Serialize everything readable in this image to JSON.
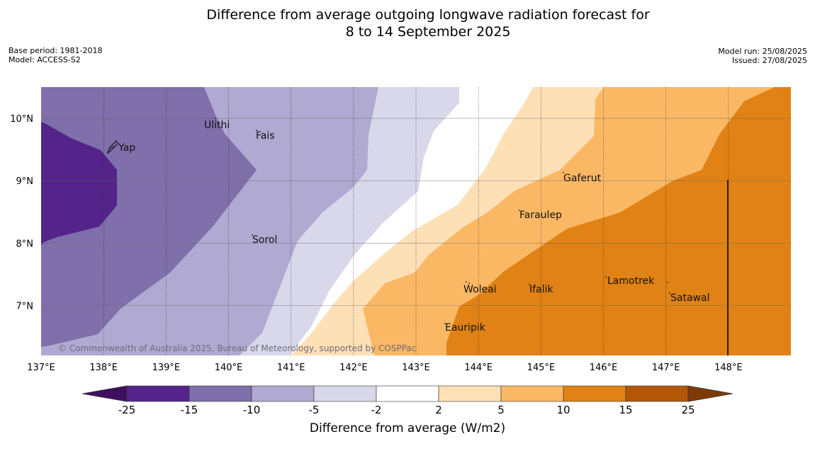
{
  "title_line1": "Difference from average outgoing longwave radiation forecast for",
  "title_line2": "8 to 14 September 2025",
  "meta_left": {
    "base_period": "Base period: 1981-2018",
    "model": "Model: ACCESS-S2"
  },
  "meta_right": {
    "model_run": "Model run: 25/08/2025",
    "issued": "Issued: 27/08/2025"
  },
  "copyright": "© Commonwealth of Australia 2025, Bureau of Meteorology, supported by COSPPac",
  "map": {
    "lon_range": [
      137,
      149
    ],
    "lat_range": [
      6.2,
      10.5
    ],
    "lon_ticks": [
      "137°E",
      "138°E",
      "139°E",
      "140°E",
      "141°E",
      "142°E",
      "143°E",
      "144°E",
      "145°E",
      "146°E",
      "147°E",
      "148°E"
    ],
    "lat_ticks": [
      "10°N",
      "9°N",
      "8°N",
      "7°N"
    ],
    "places": [
      {
        "name": "Yap",
        "lon": 138.1,
        "lat": 9.5
      },
      {
        "name": "Ulithi",
        "lon": 139.7,
        "lat": 10.0
      },
      {
        "name": "Fais",
        "lon": 140.4,
        "lat": 9.75
      },
      {
        "name": "Gaferut",
        "lon": 145.3,
        "lat": 9.05
      },
      {
        "name": "Faraulep",
        "lon": 144.6,
        "lat": 8.5
      },
      {
        "name": "Sorol",
        "lon": 140.4,
        "lat": 8.05
      },
      {
        "name": "Lamotrek",
        "lon": 146.1,
        "lat": 7.4
      },
      {
        "name": "Woleai",
        "lon": 143.8,
        "lat": 7.3
      },
      {
        "name": "Ifalik",
        "lon": 144.8,
        "lat": 7.3
      },
      {
        "name": "Satawal",
        "lon": 147.1,
        "lat": 7.15
      },
      {
        "name": "Eauripik",
        "lon": 143.2,
        "lat": 6.7
      }
    ]
  },
  "colorbar": {
    "title": "Difference from average (W/m2)",
    "labels": [
      "-25",
      "-15",
      "-10",
      "-5",
      "-2",
      "2",
      "5",
      "10",
      "15",
      "25"
    ],
    "colors": {
      "lt_-25": "#3f0f5f",
      "-25_-15": "#54248a",
      "-15_-10": "#7f6faa",
      "-10_-5": "#b0a9d1",
      "-5_-2": "#d8d8ea",
      "-2_2": "#ffffff",
      "2_5": "#fde0b6",
      "5_10": "#fbb864",
      "10_15": "#e08215",
      "15_25": "#b35707",
      "gt_25": "#7e3a06"
    }
  }
}
